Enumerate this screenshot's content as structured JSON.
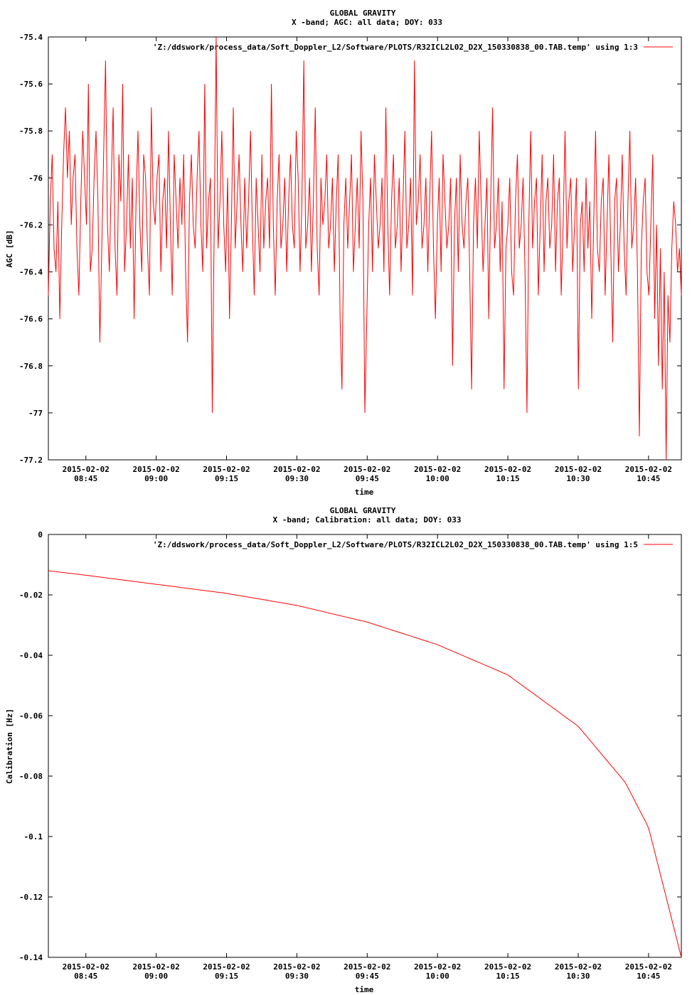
{
  "chart_data": [
    {
      "type": "line",
      "title": "GLOBAL GRAVITY",
      "subtitle": "X -band; AGC: all data; DOY: 033",
      "xlabel": "time",
      "ylabel": "AGC [dB]",
      "ylim": [
        -77.2,
        -75.4
      ],
      "yticks": [
        "-75.4",
        "-75.6",
        "-75.8",
        "-76",
        "-76.2",
        "-76.4",
        "-76.6",
        "-76.8",
        "-77",
        "-77.2"
      ],
      "xlim": [
        "2015-02-02 08:37",
        "2015-02-02 10:52"
      ],
      "xtick_dates": [
        "2015-02-02",
        "2015-02-02",
        "2015-02-02",
        "2015-02-02",
        "2015-02-02",
        "2015-02-02",
        "2015-02-02",
        "2015-02-02",
        "2015-02-02"
      ],
      "xtick_times": [
        "08:45",
        "09:00",
        "09:15",
        "09:30",
        "09:45",
        "10:00",
        "10:15",
        "10:30",
        "10:45"
      ],
      "grid": false,
      "legend_position": "top-right",
      "line_color": "#ff0000",
      "series": [
        {
          "name": "'Z:/ddswork/process_data/Soft_Doppler_L2/Software/PLOTS/R32ICL2L02_D2X_150330838_00.TAB.temp' using 1:3",
          "x_start": "2015-02-02 08:37",
          "x_end": "2015-02-02 10:52",
          "values": [
            -76.5,
            -76.1,
            -75.9,
            -76.3,
            -76.4,
            -76.1,
            -76.6,
            -76.2,
            -75.9,
            -75.7,
            -76.0,
            -75.8,
            -76.2,
            -76.0,
            -75.9,
            -76.3,
            -76.5,
            -76.1,
            -75.8,
            -76.0,
            -76.2,
            -75.6,
            -76.4,
            -76.3,
            -76.0,
            -75.8,
            -76.1,
            -76.7,
            -76.3,
            -75.9,
            -75.5,
            -76.2,
            -76.4,
            -76.0,
            -75.7,
            -76.3,
            -76.5,
            -75.9,
            -76.1,
            -75.6,
            -76.4,
            -76.2,
            -75.9,
            -76.3,
            -76.0,
            -76.6,
            -76.1,
            -75.8,
            -76.2,
            -76.4,
            -75.9,
            -76.0,
            -76.3,
            -76.5,
            -75.7,
            -76.1,
            -76.2,
            -76.0,
            -75.9,
            -76.4,
            -76.1,
            -76.0,
            -76.3,
            -75.8,
            -76.2,
            -76.5,
            -75.9,
            -76.1,
            -76.3,
            -76.0,
            -76.2,
            -75.9,
            -76.4,
            -76.7,
            -76.1,
            -75.9,
            -76.2,
            -76.3,
            -76.0,
            -75.8,
            -76.2,
            -76.4,
            -75.6,
            -76.3,
            -76.1,
            -76.0,
            -77.0,
            -76.2,
            -75.4,
            -76.3,
            -76.1,
            -75.8,
            -76.2,
            -76.4,
            -76.0,
            -76.6,
            -76.2,
            -75.7,
            -76.3,
            -76.1,
            -75.9,
            -76.2,
            -76.4,
            -76.0,
            -76.3,
            -76.1,
            -75.8,
            -76.2,
            -76.5,
            -76.0,
            -76.2,
            -76.4,
            -75.9,
            -76.3,
            -76.1,
            -76.0,
            -76.3,
            -75.6,
            -76.2,
            -76.5,
            -76.1,
            -75.9,
            -76.3,
            -76.2,
            -76.0,
            -76.4,
            -76.1,
            -75.9,
            -76.2,
            -76.3,
            -75.8,
            -76.0,
            -76.4,
            -76.1,
            -75.5,
            -76.3,
            -76.2,
            -76.0,
            -76.4,
            -76.1,
            -75.7,
            -76.3,
            -76.5,
            -76.0,
            -76.2,
            -76.1,
            -75.9,
            -76.3,
            -76.2,
            -76.0,
            -76.4,
            -76.1,
            -75.9,
            -76.6,
            -76.9,
            -76.2,
            -76.0,
            -76.3,
            -76.1,
            -75.9,
            -76.4,
            -76.2,
            -76.0,
            -76.3,
            -75.8,
            -76.1,
            -77.0,
            -76.6,
            -76.2,
            -76.0,
            -76.4,
            -75.9,
            -76.1,
            -76.3,
            -76.2,
            -76.0,
            -76.4,
            -75.7,
            -76.2,
            -76.5,
            -76.1,
            -75.9,
            -76.3,
            -76.2,
            -76.0,
            -76.4,
            -76.1,
            -75.8,
            -76.3,
            -76.2,
            -76.0,
            -76.5,
            -75.5,
            -76.2,
            -76.1,
            -75.9,
            -76.3,
            -76.2,
            -76.0,
            -76.4,
            -76.1,
            -75.8,
            -76.3,
            -76.6,
            -76.2,
            -76.0,
            -76.4,
            -75.9,
            -76.1,
            -76.3,
            -76.2,
            -76.0,
            -76.8,
            -76.2,
            -76.0,
            -76.4,
            -75.9,
            -76.2,
            -76.3,
            -76.1,
            -76.0,
            -76.4,
            -76.9,
            -76.2,
            -76.0,
            -76.3,
            -75.8,
            -76.1,
            -76.4,
            -76.2,
            -76.0,
            -76.6,
            -76.1,
            -75.7,
            -76.3,
            -76.2,
            -76.0,
            -76.4,
            -76.1,
            -76.9,
            -76.3,
            -76.2,
            -76.0,
            -76.4,
            -76.5,
            -76.1,
            -75.9,
            -76.3,
            -76.2,
            -76.0,
            -76.4,
            -77.0,
            -76.2,
            -75.8,
            -76.3,
            -76.1,
            -76.0,
            -76.5,
            -76.2,
            -75.9,
            -76.4,
            -76.1,
            -76.0,
            -76.3,
            -76.2,
            -75.9,
            -76.4,
            -76.1,
            -76.0,
            -76.5,
            -76.2,
            -75.8,
            -76.3,
            -76.1,
            -76.0,
            -76.4,
            -76.2,
            -76.0,
            -76.9,
            -76.2,
            -76.1,
            -76.4,
            -76.0,
            -76.3,
            -76.1,
            -76.6,
            -76.2,
            -75.8,
            -76.3,
            -76.4,
            -76.1,
            -76.0,
            -76.5,
            -76.2,
            -75.9,
            -76.3,
            -76.7,
            -76.1,
            -76.0,
            -76.4,
            -76.2,
            -75.9,
            -76.3,
            -76.5,
            -76.1,
            -75.8,
            -76.3,
            -76.2,
            -76.0,
            -76.4,
            -77.1,
            -76.3,
            -76.1,
            -76.0,
            -76.4,
            -76.5,
            -76.2,
            -75.9,
            -76.6,
            -76.2,
            -76.8,
            -76.3,
            -76.9,
            -76.4,
            -77.2,
            -76.5,
            -76.7,
            -76.3,
            -76.1,
            -76.2,
            -76.4,
            -76.3,
            -76.5
          ]
        }
      ]
    },
    {
      "type": "line",
      "title": "GLOBAL GRAVITY",
      "subtitle": "X -band; Calibration: all data; DOY: 033",
      "xlabel": "time",
      "ylabel": "Calibration [Hz]",
      "ylim": [
        -0.14,
        0
      ],
      "yticks": [
        "0",
        "-0.02",
        "-0.04",
        "-0.06",
        "-0.08",
        "-0.1",
        "-0.12",
        "-0.14"
      ],
      "xlim": [
        "2015-02-02 08:37",
        "2015-02-02 10:52"
      ],
      "xtick_dates": [
        "2015-02-02",
        "2015-02-02",
        "2015-02-02",
        "2015-02-02",
        "2015-02-02",
        "2015-02-02",
        "2015-02-02",
        "2015-02-02",
        "2015-02-02"
      ],
      "xtick_times": [
        "08:45",
        "09:00",
        "09:15",
        "09:30",
        "09:45",
        "10:00",
        "10:15",
        "10:30",
        "10:45"
      ],
      "grid": false,
      "legend_position": "top-right",
      "line_color": "#ff0000",
      "series": [
        {
          "name": "'Z:/ddswork/process_data/Soft_Doppler_L2/Software/PLOTS/R32ICL2L02_D2X_150330838_00.TAB.temp' using 1:5",
          "x": [
            "08:37",
            "08:45",
            "09:00",
            "09:15",
            "09:30",
            "09:45",
            "10:00",
            "10:15",
            "10:30",
            "10:40",
            "10:45",
            "10:52"
          ],
          "values": [
            -0.012,
            -0.0135,
            -0.0165,
            -0.0195,
            -0.0235,
            -0.029,
            -0.0365,
            -0.0465,
            -0.0635,
            -0.082,
            -0.097,
            -0.14
          ]
        }
      ]
    }
  ]
}
